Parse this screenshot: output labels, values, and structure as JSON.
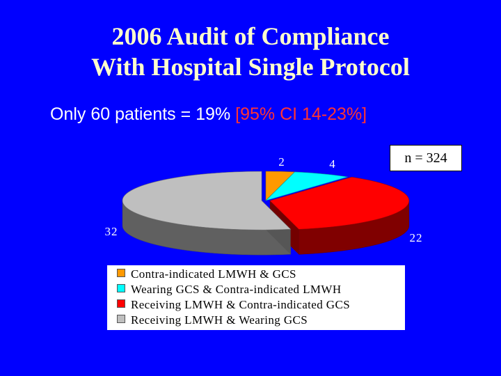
{
  "slide": {
    "title_line1": "2006 Audit of Compliance",
    "title_line2": "With Hospital Single Protocol",
    "subtitle_main": "Only 60 patients = 19% ",
    "subtitle_ci": "[95% CI 14-23%]",
    "n_box": "n = 324",
    "background_color": "#0000ff"
  },
  "chart_data": {
    "type": "pie",
    "title": "",
    "categories": [
      "Contra-indicated LMWH & GCS",
      "Wearing GCS & Contra-indicated LMWH",
      "Receiving LMWH & Contra-indicated GCS",
      "Receiving LMWH & Wearing GCS"
    ],
    "values": [
      2,
      4,
      22,
      32
    ],
    "data_labels": [
      "2",
      "4",
      "22",
      "32"
    ],
    "colors": [
      "#ff9900",
      "#00ffff",
      "#ff0000",
      "#bfbfbf"
    ],
    "style": "3d-exploded",
    "legend_position": "bottom"
  }
}
